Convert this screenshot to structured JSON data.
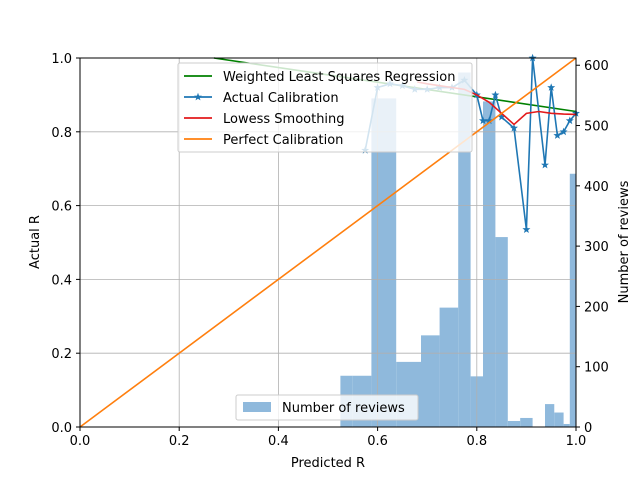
{
  "chart_data": {
    "type": "line+bar",
    "xlabel": "Predicted R",
    "ylabel": "Actual R",
    "ylabel_right": "Number of reviews",
    "xlim": [
      0,
      1
    ],
    "ylim": [
      0,
      1
    ],
    "ylim_right": [
      0,
      612
    ],
    "xticks": [
      "0.0",
      "0.2",
      "0.4",
      "0.6",
      "0.8",
      "1.0"
    ],
    "yticks": [
      "0.0",
      "0.2",
      "0.4",
      "0.6",
      "0.8",
      "1.0"
    ],
    "yticks_right": [
      "0",
      "100",
      "200",
      "300",
      "400",
      "500",
      "600"
    ],
    "grid": true,
    "legend_lines": [
      {
        "label": "Weighted Least Squares Regression",
        "color": "#008000"
      },
      {
        "label": "Actual Calibration",
        "color": "#1f77b4",
        "marker": "star"
      },
      {
        "label": "Lowess Smoothing",
        "color": "#e31a1c"
      },
      {
        "label": "Perfect Calibration",
        "color": "#ff7f0e"
      }
    ],
    "legend_bars": {
      "label": "Number of reviews",
      "color": "#8fb9dc"
    },
    "series": [
      {
        "name": "Weighted Least Squares Regression",
        "color": "#008000",
        "x": [
          0.27,
          1.0
        ],
        "y": [
          1.0,
          0.855
        ]
      },
      {
        "name": "Actual Calibration",
        "color": "#1f77b4",
        "x": [
          0.575,
          0.6,
          0.625,
          0.65,
          0.675,
          0.7,
          0.725,
          0.75,
          0.775,
          0.8,
          0.8125,
          0.825,
          0.8375,
          0.85,
          0.875,
          0.9,
          0.9125,
          0.9375,
          0.95,
          0.9625,
          0.975,
          0.9875,
          1.0
        ],
        "y": [
          0.75,
          0.92,
          0.93,
          0.925,
          0.915,
          0.915,
          0.92,
          0.92,
          0.94,
          0.9,
          0.83,
          0.83,
          0.9,
          0.84,
          0.81,
          0.535,
          1.0,
          0.71,
          0.92,
          0.79,
          0.8,
          0.83,
          0.85
        ]
      },
      {
        "name": "Lowess Smoothing",
        "color": "#e31a1c",
        "x": [
          0.68,
          0.7,
          0.725,
          0.75,
          0.775,
          0.8,
          0.825,
          0.85,
          0.875,
          0.9,
          0.925,
          0.95,
          0.975,
          1.0
        ],
        "y": [
          0.935,
          0.93,
          0.925,
          0.92,
          0.915,
          0.9,
          0.88,
          0.85,
          0.82,
          0.85,
          0.855,
          0.85,
          0.848,
          0.847
        ]
      },
      {
        "name": "Perfect Calibration",
        "color": "#ff7f0e",
        "x": [
          0,
          1
        ],
        "y": [
          0,
          1
        ]
      }
    ],
    "histogram": {
      "name": "Number of reviews",
      "bins": [
        {
          "x0": 0.525,
          "x1": 0.55,
          "count": 85
        },
        {
          "x0": 0.55,
          "x1": 0.5875,
          "count": 85
        },
        {
          "x0": 0.5875,
          "x1": 0.6375,
          "count": 545
        },
        {
          "x0": 0.6375,
          "x1": 0.6875,
          "count": 108
        },
        {
          "x0": 0.6875,
          "x1": 0.725,
          "count": 152
        },
        {
          "x0": 0.725,
          "x1": 0.7625,
          "count": 198
        },
        {
          "x0": 0.7625,
          "x1": 0.7875,
          "count": 588
        },
        {
          "x0": 0.7875,
          "x1": 0.8125,
          "count": 84
        },
        {
          "x0": 0.8125,
          "x1": 0.8375,
          "count": 540
        },
        {
          "x0": 0.8375,
          "x1": 0.8625,
          "count": 315
        },
        {
          "x0": 0.8625,
          "x1": 0.8875,
          "count": 10
        },
        {
          "x0": 0.8875,
          "x1": 0.9125,
          "count": 15
        },
        {
          "x0": 0.9125,
          "x1": 0.9375,
          "count": 0
        },
        {
          "x0": 0.9375,
          "x1": 0.9562,
          "count": 38
        },
        {
          "x0": 0.9562,
          "x1": 0.975,
          "count": 24
        },
        {
          "x0": 0.975,
          "x1": 0.9875,
          "count": 5
        },
        {
          "x0": 0.9875,
          "x1": 1.0,
          "count": 420
        }
      ]
    }
  }
}
